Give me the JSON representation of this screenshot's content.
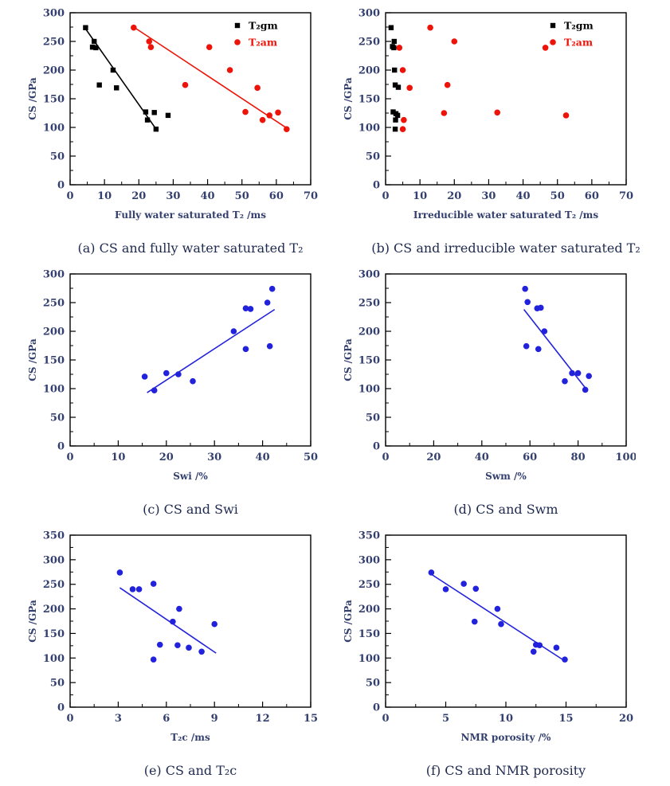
{
  "colors": {
    "black": "#000000",
    "red": "#ee1309",
    "blue": "#2222dd",
    "frame": "#000000",
    "tick_text": "#333f6e",
    "caption_text": "#1e2950"
  },
  "chart_data": [
    {
      "id": "a",
      "type": "scatter",
      "caption": "(a) CS and fully water saturated T₂",
      "xlabel": "Fully water saturated T₂ /ms",
      "ylabel": "CS /GPa",
      "x": {
        "min": 0,
        "max": 70,
        "step": 10
      },
      "y": {
        "min": 0,
        "max": 300,
        "step": 50
      },
      "grid": false,
      "legend": true,
      "legend_position": "top-right",
      "series": [
        {
          "name": "T₂gm",
          "marker": "square",
          "color": "black",
          "points": [
            [
              4.5,
              274
            ],
            [
              7,
              250
            ],
            [
              6.5,
              240
            ],
            [
              7.5,
              239
            ],
            [
              12.5,
              200
            ],
            [
              8.5,
              174
            ],
            [
              13.5,
              169
            ],
            [
              22,
              127
            ],
            [
              24.5,
              126
            ],
            [
              22.5,
              113
            ],
            [
              28.5,
              121
            ],
            [
              25,
              97
            ]
          ]
        },
        {
          "name": "T₂am",
          "marker": "circle",
          "color": "red",
          "points": [
            [
              18.5,
              274
            ],
            [
              23,
              250
            ],
            [
              23.5,
              240
            ],
            [
              40.5,
              240
            ],
            [
              46.5,
              200
            ],
            [
              33.5,
              174
            ],
            [
              54.5,
              169
            ],
            [
              51,
              127
            ],
            [
              58,
              121
            ],
            [
              60.5,
              126
            ],
            [
              56,
              113
            ],
            [
              63,
              97
            ]
          ]
        }
      ],
      "trend_lines": [
        {
          "color": "black",
          "from": [
            4.5,
            272
          ],
          "to": [
            25.5,
            93
          ]
        },
        {
          "color": "red",
          "from": [
            18.5,
            275
          ],
          "to": [
            63.5,
            97
          ]
        }
      ]
    },
    {
      "id": "b",
      "type": "scatter",
      "caption": "(b) CS and irreducible water saturated T₂",
      "xlabel": "Irreducible water saturated T₂ /ms",
      "ylabel": "CS /GPa",
      "x": {
        "min": 0,
        "max": 70,
        "step": 10
      },
      "y": {
        "min": 0,
        "max": 300,
        "step": 50
      },
      "grid": false,
      "legend": true,
      "legend_position": "top-right",
      "series": [
        {
          "name": "T₂gm",
          "marker": "square",
          "color": "black",
          "points": [
            [
              1.6,
              274
            ],
            [
              2.5,
              250
            ],
            [
              2.0,
              241
            ],
            [
              2.4,
              239
            ],
            [
              2.6,
              200
            ],
            [
              2.8,
              174
            ],
            [
              3.7,
              170
            ],
            [
              2.2,
              127
            ],
            [
              3.0,
              124
            ],
            [
              3.5,
              121
            ],
            [
              2.9,
              113
            ],
            [
              2.8,
              97
            ]
          ]
        },
        {
          "name": "T₂am",
          "marker": "circle",
          "color": "red",
          "points": [
            [
              13,
              274
            ],
            [
              20,
              250
            ],
            [
              4,
              239
            ],
            [
              46.5,
              239
            ],
            [
              5,
              200
            ],
            [
              18,
              174
            ],
            [
              7,
              169
            ],
            [
              17,
              125
            ],
            [
              32.5,
              126
            ],
            [
              52.5,
              121
            ],
            [
              5.3,
              113
            ],
            [
              5,
              97
            ]
          ]
        }
      ],
      "trend_lines": []
    },
    {
      "id": "c",
      "type": "scatter",
      "caption": "(c) CS and Swi",
      "xlabel": "Swi /%",
      "ylabel": "CS /GPa",
      "x": {
        "min": 0,
        "max": 50,
        "step": 10
      },
      "y": {
        "min": 0,
        "max": 300,
        "step": 50
      },
      "grid": false,
      "legend": false,
      "series": [
        {
          "name": "CS",
          "marker": "circle",
          "color": "blue",
          "points": [
            [
              15.5,
              121
            ],
            [
              17.5,
              97
            ],
            [
              20,
              127
            ],
            [
              22.5,
              125
            ],
            [
              25.5,
              113
            ],
            [
              34,
              200
            ],
            [
              36.5,
              240
            ],
            [
              37.5,
              239
            ],
            [
              36.5,
              169
            ],
            [
              41,
              250
            ],
            [
              41.5,
              174
            ],
            [
              42,
              274
            ]
          ]
        }
      ],
      "trend_lines": [
        {
          "color": "blue",
          "from": [
            16,
            93
          ],
          "to": [
            42.5,
            238
          ]
        }
      ]
    },
    {
      "id": "d",
      "type": "scatter",
      "caption": "(d) CS and Swm",
      "xlabel": "Swm /%",
      "ylabel": "CS /GPa",
      "x": {
        "min": 0,
        "max": 100,
        "step": 20
      },
      "y": {
        "min": 0,
        "max": 300,
        "step": 50
      },
      "grid": false,
      "legend": false,
      "series": [
        {
          "name": "CS",
          "marker": "circle",
          "color": "blue",
          "points": [
            [
              58,
              274
            ],
            [
              59,
              251
            ],
            [
              63,
              240
            ],
            [
              64.5,
              241
            ],
            [
              66,
              200
            ],
            [
              58.5,
              174
            ],
            [
              63.5,
              169
            ],
            [
              74.5,
              113
            ],
            [
              77.5,
              127
            ],
            [
              80,
              127
            ],
            [
              84.5,
              122
            ],
            [
              83,
              98
            ]
          ]
        }
      ],
      "trend_lines": [
        {
          "color": "blue",
          "from": [
            57.5,
            238
          ],
          "to": [
            84,
            96
          ]
        }
      ]
    },
    {
      "id": "e",
      "type": "scatter",
      "caption": "(e) CS and T₂c",
      "xlabel": "T₂c /ms",
      "ylabel": "CS /GPa",
      "x": {
        "min": 0,
        "max": 15,
        "step": 3
      },
      "y": {
        "min": 0,
        "max": 350,
        "step": 50
      },
      "grid": false,
      "legend": false,
      "series": [
        {
          "name": "CS",
          "marker": "circle",
          "color": "blue",
          "points": [
            [
              3.1,
              274
            ],
            [
              3.9,
              240
            ],
            [
              4.3,
              240
            ],
            [
              5.2,
              251
            ],
            [
              6.8,
              200
            ],
            [
              6.4,
              174
            ],
            [
              9.0,
              169
            ],
            [
              5.6,
              127
            ],
            [
              6.7,
              126
            ],
            [
              7.4,
              121
            ],
            [
              8.2,
              113
            ],
            [
              5.2,
              97
            ]
          ]
        }
      ],
      "trend_lines": [
        {
          "color": "blue",
          "from": [
            3.1,
            243
          ],
          "to": [
            9.1,
            110
          ]
        }
      ]
    },
    {
      "id": "f",
      "type": "scatter",
      "caption": "(f) CS and NMR porosity",
      "xlabel": "NMR porosity /%",
      "ylabel": "CS /GPa",
      "x": {
        "min": 0,
        "max": 20,
        "step": 5
      },
      "y": {
        "min": 0,
        "max": 350,
        "step": 50
      },
      "grid": false,
      "legend": false,
      "series": [
        {
          "name": "CS",
          "marker": "circle",
          "color": "blue",
          "points": [
            [
              3.8,
              274
            ],
            [
              5.0,
              240
            ],
            [
              6.5,
              251
            ],
            [
              7.5,
              241
            ],
            [
              9.3,
              200
            ],
            [
              7.4,
              174
            ],
            [
              9.6,
              169
            ],
            [
              12.3,
              113
            ],
            [
              12.5,
              127
            ],
            [
              12.8,
              126
            ],
            [
              14.2,
              121
            ],
            [
              14.9,
              97
            ]
          ]
        }
      ],
      "trend_lines": [
        {
          "color": "blue",
          "from": [
            3.7,
            272
          ],
          "to": [
            14.9,
            94
          ]
        }
      ]
    }
  ]
}
